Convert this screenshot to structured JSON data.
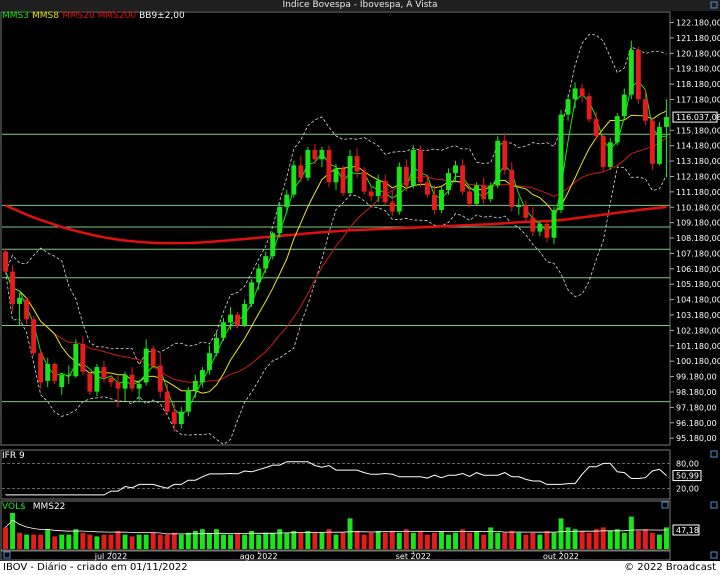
{
  "window": {
    "title": "Índice Bovespa - Ibovespa, A Vista"
  },
  "legend": {
    "mms3": "MMS3",
    "mms8": "MMS8",
    "mms20": "MMS20",
    "mms200": "MMS200",
    "bb": "BB9±2,00"
  },
  "colors": {
    "up": "#19e619",
    "down": "#e41c1c",
    "mms3": "#19e619",
    "mms8": "#e6e619",
    "mms20": "#d01818",
    "mms200": "#e01010",
    "bb": "#d8d8d8",
    "hline": "#7ccc7c"
  },
  "footer": {
    "left": "IBOV - Diário - criado em 01/11/2022",
    "right": "© 2022 Broadcast"
  },
  "chart_data": [
    {
      "type": "candlestick",
      "title": "Índice Bovespa - Ibovespa, A Vista",
      "y_ticks": [
        "122.180,00",
        "121.180,00",
        "120.180,00",
        "119.180,00",
        "118.180,00",
        "117.180,00",
        "116.037,08",
        "115.180,00",
        "114.180,00",
        "113.180,00",
        "112.180,00",
        "111.180,00",
        "110.180,00",
        "109.180,00",
        "108.180,00",
        "107.180,00",
        "106.180,00",
        "105.180,00",
        "104.180,00",
        "103.180,00",
        "102.180,00",
        "101.180,00",
        "100.180,00",
        "99.180,00",
        "98.180,00",
        "97.180,00",
        "96.180,00",
        "95.180,00"
      ],
      "last_value_label": "116.037,08",
      "ylim": [
        94800,
        122800
      ],
      "month_labels": [
        {
          "label": "jul 2022",
          "index": 15
        },
        {
          "label": "ago 2022",
          "index": 36
        },
        {
          "label": "set 2022",
          "index": 58
        },
        {
          "label": "out 2022",
          "index": 79
        }
      ],
      "horizontal_levels": [
        114920,
        110300,
        108900,
        107450,
        105600,
        102500,
        97550
      ],
      "candles": [
        {
          "o": 107300,
          "h": 107500,
          "l": 105900,
          "c": 106000
        },
        {
          "o": 106000,
          "h": 106400,
          "l": 103400,
          "c": 103900
        },
        {
          "o": 103900,
          "h": 104600,
          "l": 102500,
          "c": 104300
        },
        {
          "o": 104200,
          "h": 104300,
          "l": 102600,
          "c": 102900
        },
        {
          "o": 102900,
          "h": 103100,
          "l": 100500,
          "c": 100700
        },
        {
          "o": 100700,
          "h": 100900,
          "l": 98400,
          "c": 98800
        },
        {
          "o": 98900,
          "h": 100400,
          "l": 98500,
          "c": 100000
        },
        {
          "o": 100000,
          "h": 100100,
          "l": 98700,
          "c": 98900
        },
        {
          "o": 98500,
          "h": 99400,
          "l": 98000,
          "c": 99300
        },
        {
          "o": 99300,
          "h": 99900,
          "l": 98700,
          "c": 99300
        },
        {
          "o": 99200,
          "h": 101600,
          "l": 99100,
          "c": 101300
        },
        {
          "o": 101300,
          "h": 101800,
          "l": 99300,
          "c": 99500
        },
        {
          "o": 99400,
          "h": 99500,
          "l": 98000,
          "c": 98200
        },
        {
          "o": 98200,
          "h": 100000,
          "l": 97900,
          "c": 99800
        },
        {
          "o": 99800,
          "h": 100200,
          "l": 98800,
          "c": 99100
        },
        {
          "o": 99100,
          "h": 99300,
          "l": 98500,
          "c": 98800
        },
        {
          "o": 98800,
          "h": 99200,
          "l": 97200,
          "c": 98400
        },
        {
          "o": 98400,
          "h": 99500,
          "l": 97600,
          "c": 99300
        },
        {
          "o": 99300,
          "h": 99800,
          "l": 98200,
          "c": 98400
        },
        {
          "o": 98400,
          "h": 99000,
          "l": 97500,
          "c": 98700
        },
        {
          "o": 98800,
          "h": 101600,
          "l": 98600,
          "c": 101000
        },
        {
          "o": 101000,
          "h": 101200,
          "l": 99700,
          "c": 99900
        },
        {
          "o": 99900,
          "h": 100700,
          "l": 97800,
          "c": 98200
        },
        {
          "o": 98200,
          "h": 98700,
          "l": 96700,
          "c": 96900
        },
        {
          "o": 96900,
          "h": 97500,
          "l": 95600,
          "c": 96100
        },
        {
          "o": 96100,
          "h": 97200,
          "l": 95800,
          "c": 96900
        },
        {
          "o": 96900,
          "h": 98500,
          "l": 96600,
          "c": 98300
        },
        {
          "o": 98300,
          "h": 99300,
          "l": 97800,
          "c": 98900
        },
        {
          "o": 98800,
          "h": 99800,
          "l": 98500,
          "c": 99600
        },
        {
          "o": 99600,
          "h": 101200,
          "l": 99300,
          "c": 100700
        },
        {
          "o": 100700,
          "h": 102100,
          "l": 100500,
          "c": 101700
        },
        {
          "o": 101700,
          "h": 103000,
          "l": 101500,
          "c": 102700
        },
        {
          "o": 102700,
          "h": 103700,
          "l": 102200,
          "c": 103200
        },
        {
          "o": 103200,
          "h": 103400,
          "l": 102300,
          "c": 102500
        },
        {
          "o": 102500,
          "h": 104200,
          "l": 102400,
          "c": 103900
        },
        {
          "o": 103900,
          "h": 105500,
          "l": 103700,
          "c": 105300
        },
        {
          "o": 105300,
          "h": 106500,
          "l": 104800,
          "c": 106200
        },
        {
          "o": 106200,
          "h": 107300,
          "l": 105900,
          "c": 107000
        },
        {
          "o": 107000,
          "h": 108600,
          "l": 106800,
          "c": 108500
        },
        {
          "o": 108500,
          "h": 110500,
          "l": 108200,
          "c": 110200
        },
        {
          "o": 110200,
          "h": 111300,
          "l": 109800,
          "c": 111000
        },
        {
          "o": 111000,
          "h": 113200,
          "l": 110800,
          "c": 112900
        },
        {
          "o": 112900,
          "h": 113500,
          "l": 111800,
          "c": 112100
        },
        {
          "o": 112100,
          "h": 114100,
          "l": 111900,
          "c": 113900
        },
        {
          "o": 113900,
          "h": 114300,
          "l": 113000,
          "c": 113300
        },
        {
          "o": 113300,
          "h": 114100,
          "l": 112800,
          "c": 113900
        },
        {
          "o": 113900,
          "h": 114200,
          "l": 111500,
          "c": 111800
        },
        {
          "o": 111800,
          "h": 113000,
          "l": 111300,
          "c": 112700
        },
        {
          "o": 112700,
          "h": 112900,
          "l": 110900,
          "c": 111100
        },
        {
          "o": 111100,
          "h": 113900,
          "l": 111000,
          "c": 113500
        },
        {
          "o": 113500,
          "h": 114000,
          "l": 112100,
          "c": 112500
        },
        {
          "o": 112500,
          "h": 112800,
          "l": 111000,
          "c": 111200
        },
        {
          "o": 111200,
          "h": 111500,
          "l": 110600,
          "c": 110900
        },
        {
          "o": 110900,
          "h": 112300,
          "l": 110500,
          "c": 111900
        },
        {
          "o": 111900,
          "h": 112300,
          "l": 110300,
          "c": 110500
        },
        {
          "o": 110500,
          "h": 111300,
          "l": 109600,
          "c": 109900
        },
        {
          "o": 109900,
          "h": 113100,
          "l": 109700,
          "c": 112800
        },
        {
          "o": 112800,
          "h": 113300,
          "l": 111200,
          "c": 111600
        },
        {
          "o": 111600,
          "h": 114200,
          "l": 111400,
          "c": 113900
        },
        {
          "o": 113900,
          "h": 114200,
          "l": 111500,
          "c": 111800
        },
        {
          "o": 111800,
          "h": 112300,
          "l": 110800,
          "c": 111000
        },
        {
          "o": 111000,
          "h": 111600,
          "l": 109700,
          "c": 110000
        },
        {
          "o": 110000,
          "h": 111600,
          "l": 109800,
          "c": 111300
        },
        {
          "o": 111300,
          "h": 112700,
          "l": 111000,
          "c": 112400
        },
        {
          "o": 112400,
          "h": 113200,
          "l": 111800,
          "c": 112900
        },
        {
          "o": 112900,
          "h": 113300,
          "l": 111000,
          "c": 111200
        },
        {
          "o": 111200,
          "h": 111500,
          "l": 110200,
          "c": 110400
        },
        {
          "o": 110400,
          "h": 111800,
          "l": 110300,
          "c": 111600
        },
        {
          "o": 111600,
          "h": 112100,
          "l": 110400,
          "c": 110700
        },
        {
          "o": 110700,
          "h": 111800,
          "l": 110500,
          "c": 111600
        },
        {
          "o": 111600,
          "h": 114800,
          "l": 111400,
          "c": 114500
        },
        {
          "o": 114500,
          "h": 115000,
          "l": 112300,
          "c": 112600
        },
        {
          "o": 112600,
          "h": 113100,
          "l": 109900,
          "c": 110200
        },
        {
          "o": 110200,
          "h": 110800,
          "l": 109700,
          "c": 110300
        },
        {
          "o": 110300,
          "h": 110600,
          "l": 109300,
          "c": 109500
        },
        {
          "o": 109500,
          "h": 110200,
          "l": 108300,
          "c": 108600
        },
        {
          "o": 108600,
          "h": 109300,
          "l": 108300,
          "c": 109100
        },
        {
          "o": 109100,
          "h": 109200,
          "l": 107900,
          "c": 108200
        },
        {
          "o": 108200,
          "h": 110200,
          "l": 107800,
          "c": 110000
        },
        {
          "o": 110000,
          "h": 116500,
          "l": 109800,
          "c": 116200
        },
        {
          "o": 116200,
          "h": 117500,
          "l": 115800,
          "c": 117200
        },
        {
          "o": 117200,
          "h": 118300,
          "l": 116600,
          "c": 117900
        },
        {
          "o": 117900,
          "h": 118200,
          "l": 117000,
          "c": 117400
        },
        {
          "o": 117400,
          "h": 117600,
          "l": 115700,
          "c": 115900
        },
        {
          "o": 115900,
          "h": 116400,
          "l": 114600,
          "c": 114800
        },
        {
          "o": 114800,
          "h": 115000,
          "l": 112500,
          "c": 112800
        },
        {
          "o": 112800,
          "h": 114700,
          "l": 112600,
          "c": 114400
        },
        {
          "o": 114400,
          "h": 116300,
          "l": 114200,
          "c": 116100
        },
        {
          "o": 116100,
          "h": 117900,
          "l": 115900,
          "c": 117500
        },
        {
          "o": 117500,
          "h": 121000,
          "l": 117200,
          "c": 120400
        },
        {
          "o": 120400,
          "h": 120600,
          "l": 116900,
          "c": 117200
        },
        {
          "o": 117200,
          "h": 117800,
          "l": 115500,
          "c": 115800
        },
        {
          "o": 115800,
          "h": 116000,
          "l": 112600,
          "c": 113000
        },
        {
          "o": 113000,
          "h": 115700,
          "l": 112900,
          "c": 115400
        },
        {
          "o": 115400,
          "h": 117200,
          "l": 112100,
          "c": 116037
        }
      ],
      "mms200": [
        110300,
        110100,
        109900,
        109700,
        109520,
        109350,
        109200,
        109050,
        108900,
        108770,
        108650,
        108530,
        108420,
        108320,
        108230,
        108150,
        108080,
        108020,
        107970,
        107930,
        107900,
        107880,
        107860,
        107850,
        107850,
        107850,
        107860,
        107880,
        107900,
        107930,
        107960,
        108000,
        108040,
        108080,
        108120,
        108160,
        108200,
        108240,
        108280,
        108320,
        108360,
        108400,
        108440,
        108480,
        108520,
        108560,
        108590,
        108620,
        108650,
        108680,
        108700,
        108720,
        108740,
        108760,
        108780,
        108800,
        108820,
        108840,
        108860,
        108880,
        108900,
        108920,
        108940,
        108960,
        108980,
        109000,
        109020,
        109040,
        109060,
        109080,
        109110,
        109140,
        109170,
        109200,
        109220,
        109240,
        109260,
        109280,
        109300,
        109350,
        109400,
        109460,
        109520,
        109580,
        109640,
        109700,
        109760,
        109820,
        109880,
        109940,
        110000,
        110050,
        110100,
        110150,
        110200
      ]
    },
    {
      "type": "line",
      "title": "IFR 9",
      "ylim": [
        0,
        100
      ],
      "levels": [
        80,
        20
      ],
      "y_ticks": [
        "80,00",
        "20,00"
      ],
      "last_value_label": "50,99",
      "values": [
        5,
        5,
        5,
        5,
        5,
        5,
        5,
        5,
        5,
        5,
        5,
        5,
        5,
        5,
        5,
        14,
        14,
        25,
        22,
        30,
        30,
        30,
        25,
        21,
        30,
        30,
        40,
        40,
        48,
        55,
        55,
        55,
        56,
        55,
        62,
        60,
        65,
        70,
        76,
        76,
        84,
        84,
        84,
        84,
        75,
        71,
        75,
        64,
        64,
        64,
        64,
        58,
        54,
        54,
        56,
        54,
        48,
        48,
        48,
        48,
        45,
        52,
        46,
        52,
        52,
        56,
        49,
        58,
        52,
        52,
        52,
        58,
        48,
        48,
        42,
        38,
        38,
        30,
        30,
        30,
        32,
        32,
        54,
        72,
        72,
        80,
        80,
        60,
        58,
        44,
        44,
        46,
        62,
        66,
        51
      ]
    },
    {
      "type": "bar",
      "title": "VOL$",
      "series_names": [
        "VOL$",
        "MMS22"
      ],
      "last_value_label": "47,18",
      "values": [
        60,
        100,
        45,
        40,
        40,
        40,
        55,
        35,
        40,
        40,
        55,
        45,
        40,
        35,
        40,
        40,
        50,
        40,
        35,
        40,
        40,
        45,
        40,
        40,
        45,
        40,
        45,
        50,
        55,
        45,
        55,
        40,
        40,
        45,
        40,
        50,
        40,
        45,
        45,
        55,
        45,
        50,
        45,
        50,
        45,
        45,
        55,
        40,
        45,
        85,
        50,
        40,
        45,
        50,
        45,
        50,
        45,
        55,
        45,
        50,
        40,
        45,
        50,
        40,
        45,
        55,
        45,
        50,
        40,
        60,
        45,
        45,
        50,
        45,
        40,
        45,
        40,
        50,
        45,
        85,
        60,
        55,
        50,
        45,
        55,
        60,
        50,
        55,
        45,
        90,
        50,
        55,
        45,
        40,
        60
      ],
      "up": [
        false,
        true,
        false,
        true,
        false,
        false,
        true,
        false,
        true,
        true,
        true,
        false,
        false,
        true,
        false,
        false,
        false,
        true,
        false,
        true,
        true,
        false,
        false,
        false,
        false,
        true,
        true,
        true,
        true,
        true,
        true,
        true,
        true,
        false,
        true,
        true,
        true,
        true,
        true,
        true,
        true,
        true,
        false,
        true,
        false,
        true,
        false,
        true,
        false,
        true,
        false,
        false,
        false,
        true,
        false,
        false,
        true,
        false,
        true,
        false,
        false,
        false,
        true,
        true,
        true,
        false,
        false,
        true,
        false,
        true,
        true,
        false,
        false,
        true,
        false,
        false,
        true,
        false,
        true,
        true,
        true,
        true,
        false,
        false,
        false,
        false,
        true,
        true,
        true,
        true,
        false,
        false,
        false,
        true,
        true
      ]
    }
  ]
}
